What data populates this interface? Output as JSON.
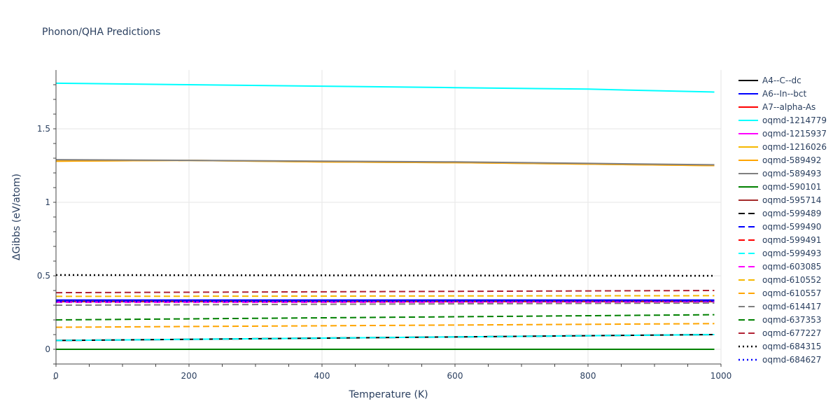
{
  "chart_data": {
    "type": "line",
    "title": "Phonon/QHA Predictions",
    "xlabel": "Temperature (K)",
    "ylabel": "ΔGibbs (eV/atom)",
    "xlim": [
      0,
      1000
    ],
    "ylim": [
      -0.1,
      1.9
    ],
    "x_ticks": [
      0,
      200,
      400,
      600,
      800,
      1000
    ],
    "y_ticks": [
      0,
      0.5,
      1,
      1.5
    ],
    "x_tick_labels": [
      "0",
      "200",
      "400",
      "600",
      "800",
      "1000"
    ],
    "y_tick_labels": [
      "0",
      "0.5",
      "1",
      "1.5"
    ],
    "grid": true,
    "legend_position": "right",
    "series": [
      {
        "name": "A4--C--dc",
        "color": "#000000",
        "dash": "solid",
        "x": [
          0,
          990
        ],
        "y": [
          0.06,
          0.1
        ]
      },
      {
        "name": "A6--In--bct",
        "color": "#0000ff",
        "dash": "solid",
        "x": [
          0,
          990
        ],
        "y": [
          0.335,
          0.335
        ]
      },
      {
        "name": "A7--alpha-As",
        "color": "#ff0000",
        "dash": "solid",
        "x": [
          0,
          990
        ],
        "y": [
          0.325,
          0.325
        ]
      },
      {
        "name": "oqmd-1214779",
        "color": "#00ffff",
        "dash": "solid",
        "x": [
          0,
          200,
          400,
          600,
          800,
          990
        ],
        "y": [
          1.81,
          1.8,
          1.79,
          1.78,
          1.77,
          1.75
        ]
      },
      {
        "name": "oqmd-1215937",
        "color": "#ff00ff",
        "dash": "solid",
        "x": [
          0,
          990
        ],
        "y": [
          0.325,
          0.325
        ]
      },
      {
        "name": "oqmd-1216026",
        "color": "#f5b800",
        "dash": "solid",
        "x": [
          0,
          200,
          400,
          600,
          800,
          990
        ],
        "y": [
          1.28,
          1.285,
          1.275,
          1.27,
          1.26,
          1.25
        ]
      },
      {
        "name": "oqmd-589492",
        "color": "#ffa500",
        "dash": "solid",
        "x": [
          0,
          200,
          400,
          600,
          800,
          990
        ],
        "y": [
          1.28,
          1.285,
          1.275,
          1.27,
          1.26,
          1.25
        ]
      },
      {
        "name": "oqmd-589493",
        "color": "#808080",
        "dash": "solid",
        "x": [
          0,
          200,
          400,
          600,
          800,
          990
        ],
        "y": [
          1.29,
          1.285,
          1.28,
          1.275,
          1.265,
          1.255
        ]
      },
      {
        "name": "oqmd-590101",
        "color": "#008000",
        "dash": "solid",
        "x": [
          0,
          990
        ],
        "y": [
          0.0,
          0.0
        ]
      },
      {
        "name": "oqmd-595714",
        "color": "#a52a2a",
        "dash": "solid",
        "x": [
          0,
          990
        ],
        "y": [
          0.325,
          0.325
        ]
      },
      {
        "name": "oqmd-599489",
        "color": "#000000",
        "dash": "dash",
        "x": [
          0,
          990
        ],
        "y": [
          0.06,
          0.1
        ]
      },
      {
        "name": "oqmd-599490",
        "color": "#0000ff",
        "dash": "dash",
        "x": [
          0,
          990
        ],
        "y": [
          0.325,
          0.325
        ]
      },
      {
        "name": "oqmd-599491",
        "color": "#ff0000",
        "dash": "dash",
        "x": [
          0,
          990
        ],
        "y": [
          0.32,
          0.32
        ]
      },
      {
        "name": "oqmd-599493",
        "color": "#00ffff",
        "dash": "dash",
        "x": [
          0,
          990
        ],
        "y": [
          0.06,
          0.1
        ]
      },
      {
        "name": "oqmd-603085",
        "color": "#ff00ff",
        "dash": "dash",
        "x": [
          0,
          990
        ],
        "y": [
          0.32,
          0.32
        ]
      },
      {
        "name": "oqmd-610552",
        "color": "#f5b800",
        "dash": "dash",
        "x": [
          0,
          990
        ],
        "y": [
          0.36,
          0.365
        ]
      },
      {
        "name": "oqmd-610557",
        "color": "#ffa500",
        "dash": "dash",
        "x": [
          0,
          990
        ],
        "y": [
          0.15,
          0.175
        ]
      },
      {
        "name": "oqmd-614417",
        "color": "#808080",
        "dash": "dash",
        "x": [
          0,
          990
        ],
        "y": [
          0.3,
          0.315
        ]
      },
      {
        "name": "oqmd-637353",
        "color": "#008000",
        "dash": "dash",
        "x": [
          0,
          990
        ],
        "y": [
          0.2,
          0.235
        ]
      },
      {
        "name": "oqmd-677227",
        "color": "#b22234",
        "dash": "dash",
        "x": [
          0,
          990
        ],
        "y": [
          0.385,
          0.4
        ]
      },
      {
        "name": "oqmd-684315",
        "color": "#000000",
        "dash": "dot",
        "x": [
          0,
          990
        ],
        "y": [
          0.505,
          0.5
        ]
      },
      {
        "name": "oqmd-684627",
        "color": "#0000ff",
        "dash": "dot",
        "x": [
          0,
          990
        ],
        "y": [
          0.325,
          0.33
        ]
      }
    ]
  }
}
